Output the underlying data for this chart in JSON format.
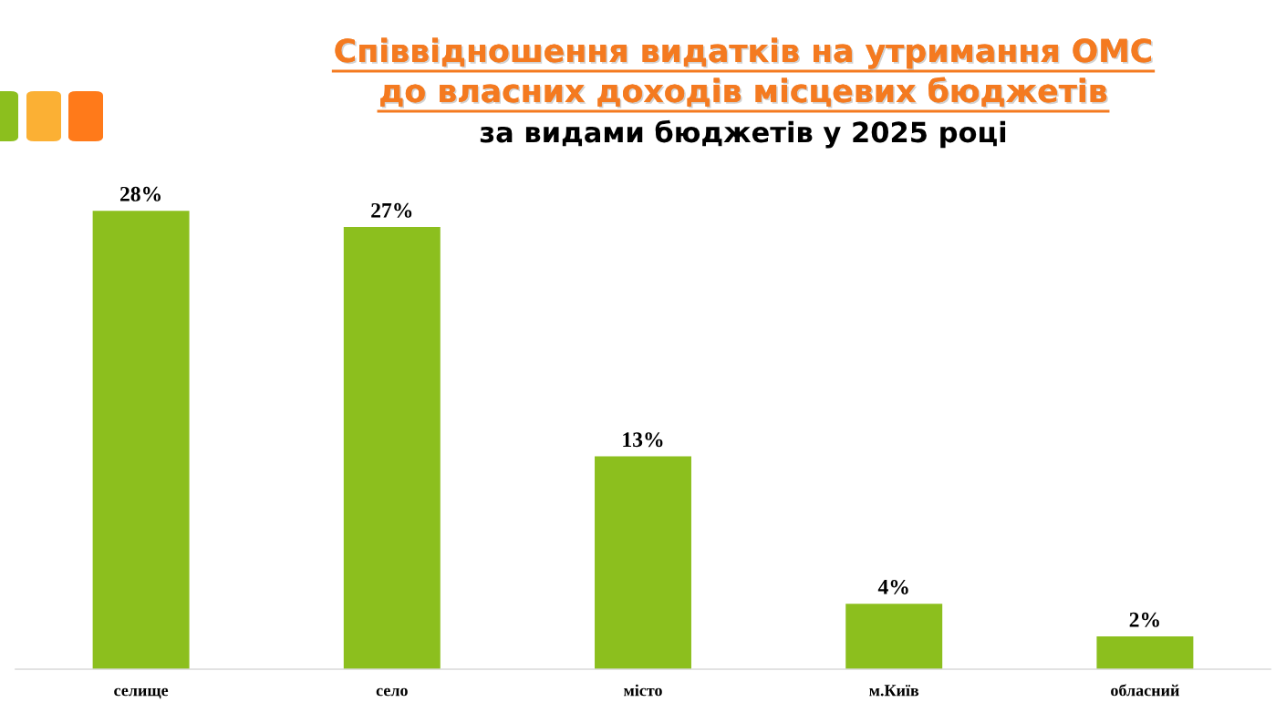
{
  "chart_data": {
    "type": "bar",
    "title": "Співвідношення видатків на утримання ОМС\nдо власних доходів місцевих бюджетів",
    "subtitle": "за видами бюджетів у 2025 році",
    "categories": [
      "селище",
      "село",
      "місто",
      "м.Київ",
      "обласний"
    ],
    "values": [
      28,
      27,
      13,
      4,
      2
    ],
    "value_labels": [
      "28%",
      "27%",
      "13%",
      "4%",
      "2%"
    ],
    "color": "#8cbf1e",
    "tick_labels": "x"
  }
}
